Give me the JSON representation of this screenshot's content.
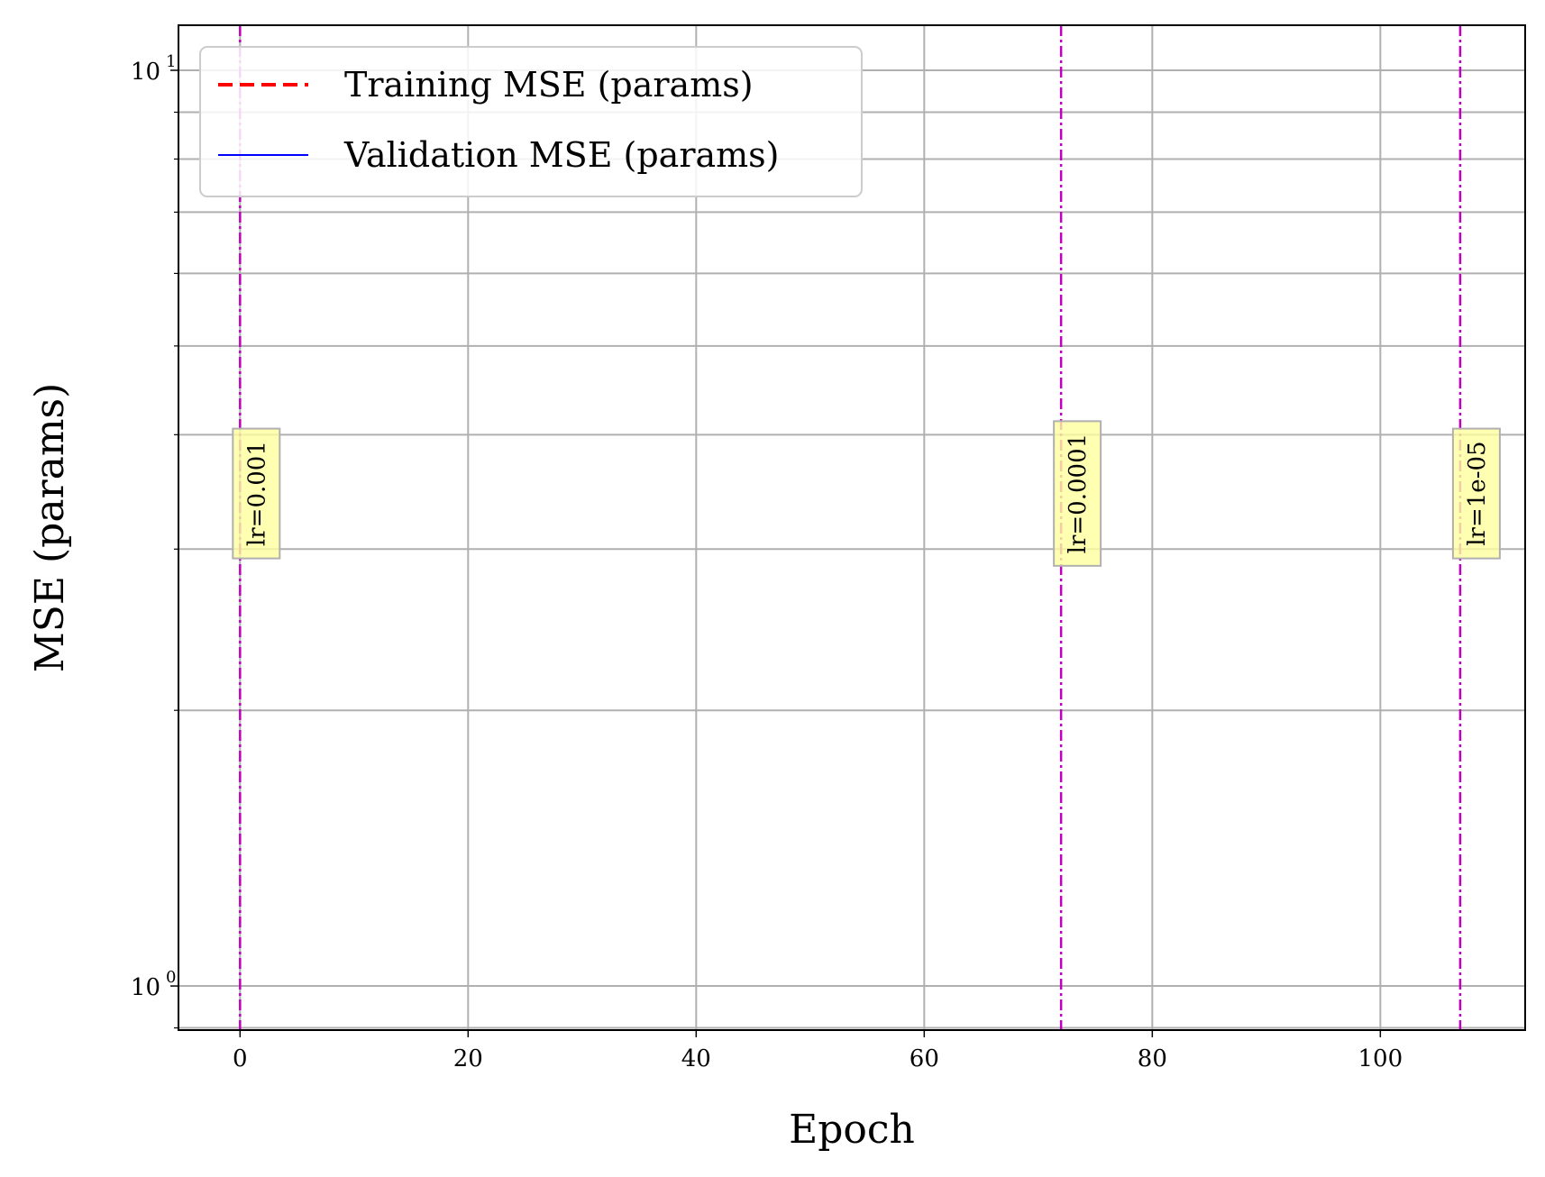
{
  "chart_data": {
    "type": "line",
    "title": "",
    "xlabel": "Epoch",
    "ylabel": "MSE (params)",
    "xlim": [
      -5.4,
      112.7
    ],
    "ylim": [
      0.895,
      11.2
    ],
    "yscale": "log",
    "grid": true,
    "x_ticks": [
      0,
      20,
      40,
      60,
      80,
      100
    ],
    "x_tick_labels": [
      "0",
      "20",
      "40",
      "60",
      "80",
      "100"
    ],
    "y_major_ticks": [
      {
        "value": 1,
        "base": "10",
        "exp": "0"
      },
      {
        "value": 10,
        "base": "10",
        "exp": "1"
      }
    ],
    "y_minor_ticks": [
      0.9,
      2,
      3,
      4,
      5,
      6,
      7,
      8,
      9
    ],
    "legend": {
      "position": "top-left",
      "entries": [
        {
          "label": "Training MSE (params)",
          "color": "#ff0000",
          "style": "dashed"
        },
        {
          "label": "Validation MSE (params)",
          "color": "#0000ff",
          "style": "solid"
        }
      ]
    },
    "series": [
      {
        "name": "Training MSE (params)",
        "color": "#ff0000",
        "style": "dashed",
        "x": [],
        "y": []
      },
      {
        "name": "Validation MSE (params)",
        "color": "#0000ff",
        "style": "solid",
        "x": [],
        "y": []
      }
    ],
    "annotations": [
      {
        "x": 0,
        "label": "lr=0.001",
        "color": "#bf00bf",
        "y_center": 3.45
      },
      {
        "x": 72,
        "label": "lr=0.0001",
        "color": "#bf00bf",
        "y_center": 3.45
      },
      {
        "x": 107,
        "label": "lr=1e-05",
        "color": "#bf00bf",
        "y_center": 3.45
      }
    ]
  }
}
